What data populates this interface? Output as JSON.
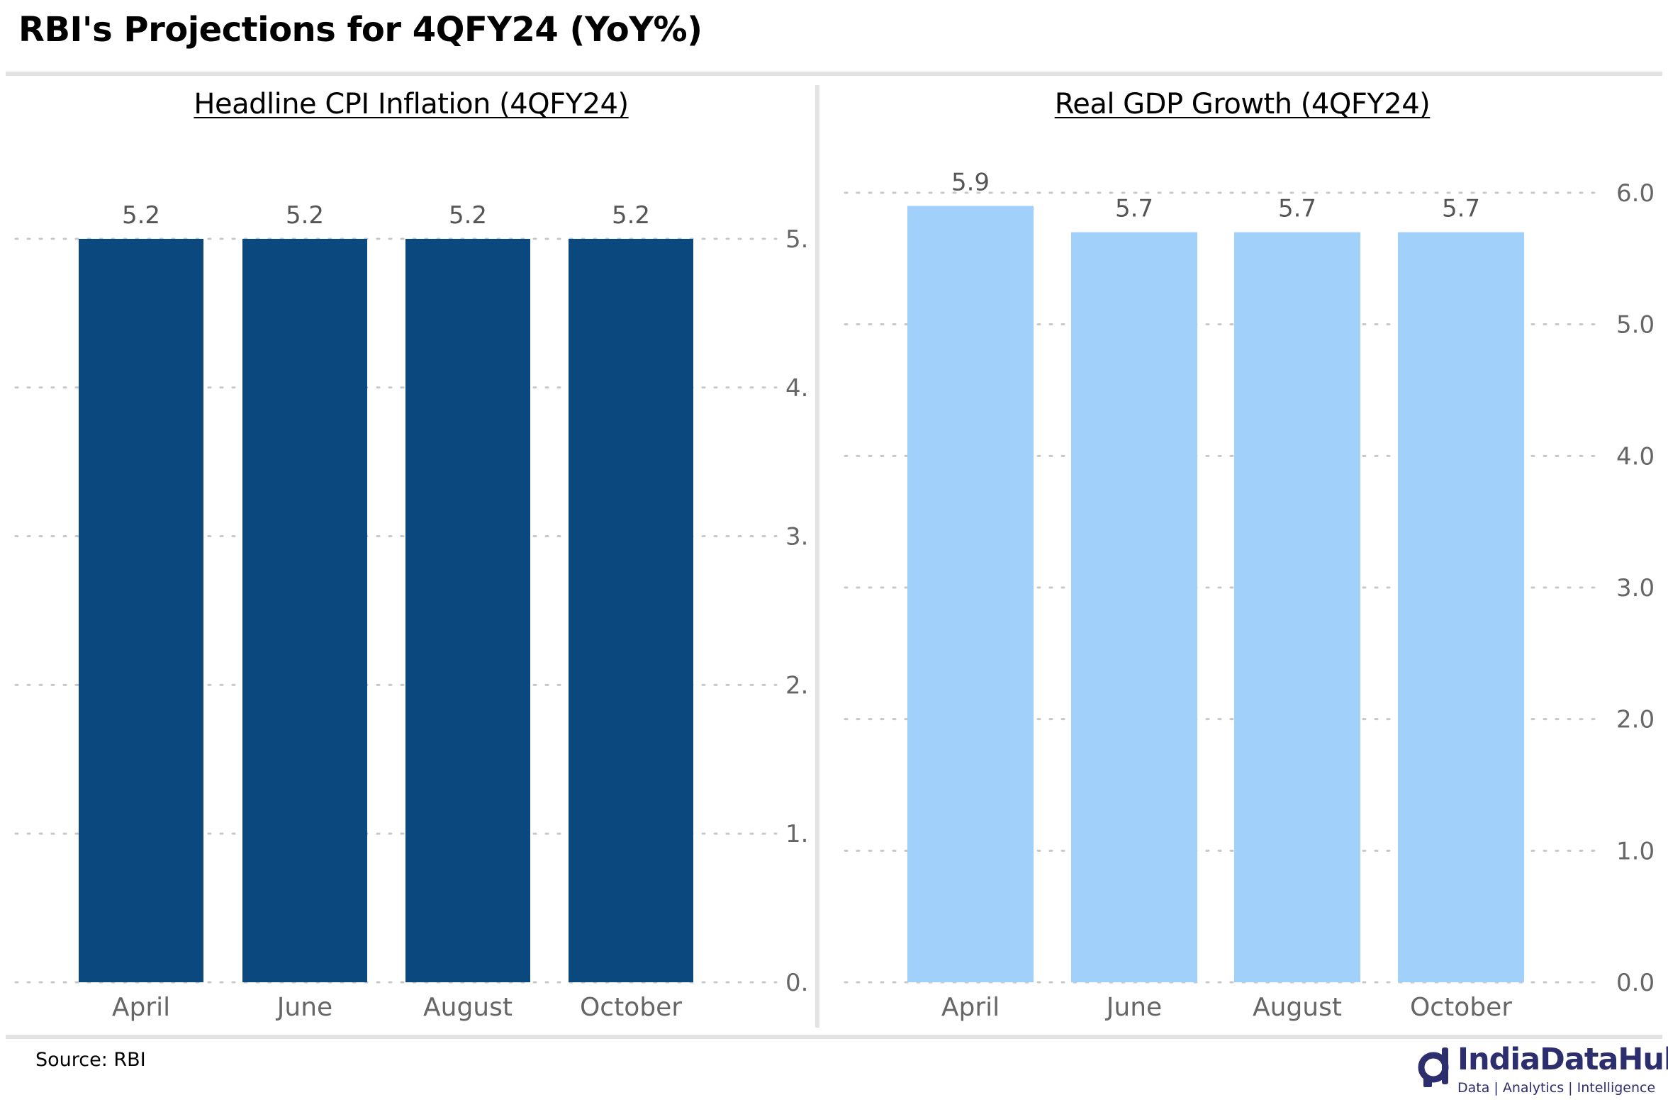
{
  "title": "RBI's Projections for 4QFY24 (YoY%)",
  "source": "Source: RBI",
  "brand": {
    "name": "IndiaDataHub",
    "tagline": "Data | Analytics | Intelligence"
  },
  "colors": {
    "cpi_bar": "#0b487d",
    "gdp_bar": "#a1d0fb",
    "grid": "#c8c8c8",
    "rule": "#e3e3e3",
    "brand": "#2d2e6e"
  },
  "chart_data": [
    {
      "type": "bar",
      "title": "Headline CPI Inflation (4QFY24)",
      "categories": [
        "April",
        "June",
        "August",
        "October"
      ],
      "values": [
        5.2,
        5.2,
        5.2,
        5.2
      ],
      "data_labels": [
        "5.2",
        "5.2",
        "5.2",
        "5.2"
      ],
      "ylim": [
        0,
        5.2
      ],
      "ytick_values": [
        0,
        1.04,
        2.08,
        3.12,
        4.16,
        5.2
      ],
      "ytick_labels": [
        "0.",
        "1.",
        "2.",
        "3.",
        "4.",
        "5."
      ],
      "y_axis_side": "right",
      "grid": true,
      "bar_color": "#0b487d"
    },
    {
      "type": "bar",
      "title": "Real GDP Growth (4QFY24)",
      "categories": [
        "April",
        "June",
        "August",
        "October"
      ],
      "values": [
        5.9,
        5.7,
        5.7,
        5.7
      ],
      "data_labels": [
        "5.9",
        "5.7",
        "5.7",
        "5.7"
      ],
      "ylim": [
        0,
        6.0
      ],
      "ytick_values": [
        0,
        1,
        2,
        3,
        4,
        5,
        6
      ],
      "ytick_labels": [
        "0.0",
        "1.0",
        "2.0",
        "3.0",
        "4.0",
        "5.0",
        "6.0"
      ],
      "y_axis_side": "right",
      "grid": true,
      "bar_color": "#a1d0fb"
    }
  ]
}
